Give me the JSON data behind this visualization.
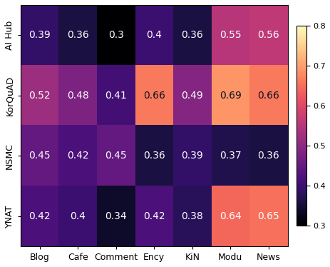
{
  "matrix": [
    [
      0.39,
      0.36,
      0.3,
      0.4,
      0.36,
      0.55,
      0.56
    ],
    [
      0.52,
      0.48,
      0.41,
      0.66,
      0.49,
      0.69,
      0.66
    ],
    [
      0.45,
      0.42,
      0.45,
      0.36,
      0.39,
      0.37,
      0.36
    ],
    [
      0.42,
      0.4,
      0.34,
      0.42,
      0.38,
      0.64,
      0.65
    ]
  ],
  "row_labels": [
    "AI Hub",
    "KorQuAD",
    "NSMC",
    "YNAT"
  ],
  "col_labels": [
    "Blog",
    "Cafe",
    "Comment",
    "Ency",
    "KiN",
    "Modu",
    "News"
  ],
  "vmin": 0.3,
  "vmax": 0.8,
  "cmap": "magma",
  "fontsize_annot": 10,
  "fontsize_tick": 9,
  "figsize": [
    4.64,
    3.74
  ],
  "dpi": 100
}
